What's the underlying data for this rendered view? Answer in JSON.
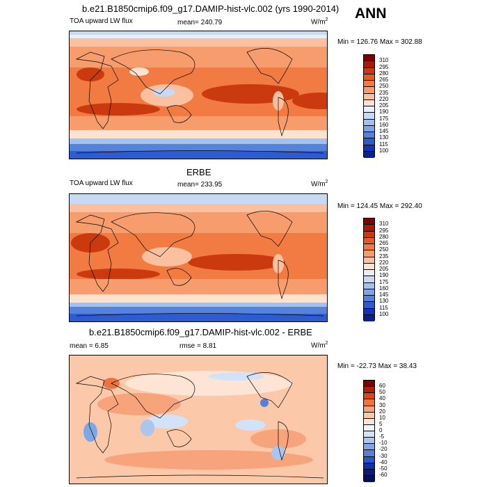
{
  "season": "ANN",
  "panels": [
    {
      "title": "b.e21.B1850cmip6.f09_g17.DAMIP-hist-vlc.002 (yrs 1990-2014)",
      "left_label": "TOA upward LW flux",
      "center_label": "mean= 240.79",
      "units": "W/m",
      "units_exp": "2",
      "minmax": "Min = 126.76 Max = 302.88",
      "levels": [
        "310",
        "295",
        "280",
        "265",
        "250",
        "235",
        "220",
        "205",
        "190",
        "175",
        "160",
        "145",
        "130",
        "115",
        "100"
      ]
    },
    {
      "title": "ERBE",
      "left_label": "TOA upward LW flux",
      "center_label": "mean= 233.95",
      "units": "W/m",
      "units_exp": "2",
      "minmax": "Min = 124.45 Max = 292.40",
      "levels": [
        "310",
        "295",
        "280",
        "265",
        "250",
        "235",
        "220",
        "205",
        "190",
        "175",
        "160",
        "145",
        "130",
        "115",
        "100"
      ]
    },
    {
      "title": "b.e21.B1850cmip6.f09_g17.DAMIP-hist-vlc.002 - ERBE",
      "left_label": "mean = 6.85",
      "center_label": "rmse = 8.81",
      "units": "W/m",
      "units_exp": "2",
      "minmax": "Min = -22.73 Max = 38.43",
      "levels": [
        "60",
        "50",
        "40",
        "30",
        "20",
        "10",
        "5",
        "0",
        "-5",
        "-10",
        "-20",
        "-30",
        "-40",
        "-50",
        "-60"
      ]
    }
  ],
  "colors": {
    "abs_scale": [
      "#7f0000",
      "#a81a02",
      "#cb3a0f",
      "#e45a22",
      "#f17b43",
      "#f79d6d",
      "#fbc09f",
      "#fde2d0",
      "#e7effb",
      "#c6daf5",
      "#a2c1ee",
      "#7ca4e6",
      "#5583dc",
      "#2f5bd0",
      "#1433bb",
      "#0a1f93"
    ],
    "diff_scale": [
      "#7f0000",
      "#b01f05",
      "#d94717",
      "#ef7341",
      "#f7a47c",
      "#fbc9aa",
      "#fde4d4",
      "#eef3fc",
      "#d2e2f8",
      "#aac6ef",
      "#7fa7e5",
      "#5581da",
      "#2a57ca",
      "#1030aa",
      "#0a1a80",
      "#060f5a"
    ]
  }
}
